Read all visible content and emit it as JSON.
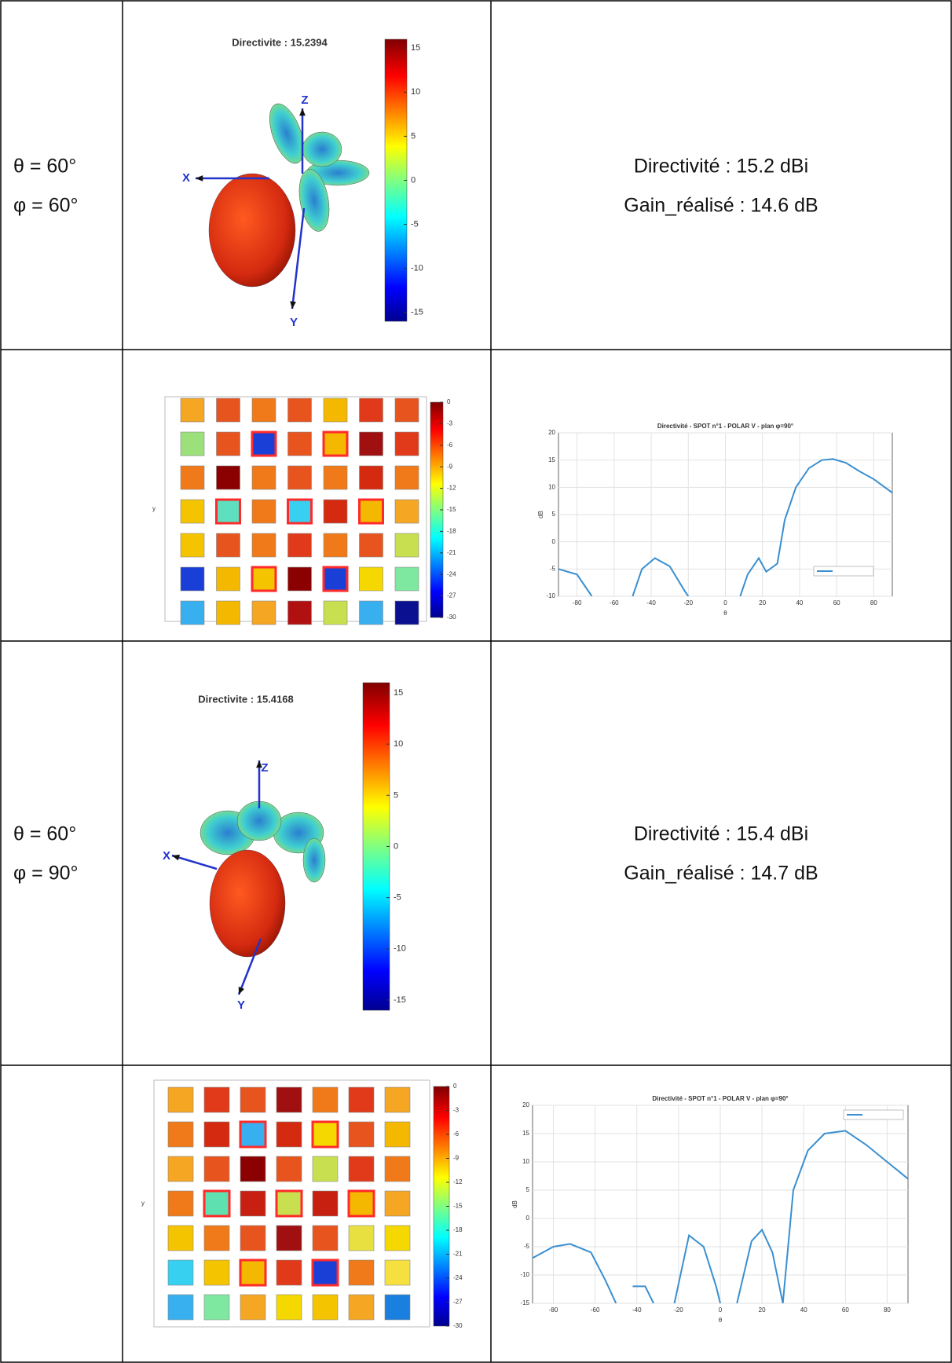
{
  "table": {
    "rows": [
      {
        "angles": [
          "θ = 60°",
          "φ = 60°"
        ],
        "results": [
          "Directivité : 15.2 dBi",
          "Gain_réalisé : 14.6 dB"
        ],
        "pattern": {
          "title": "Directivite : 15.2394",
          "axes": {
            "x": "X",
            "y": "Y",
            "z": "Z"
          },
          "colorbar": {
            "lim": [
              -16,
              16
            ],
            "ticks": [
              15,
              10,
              5,
              0,
              -5,
              -10,
              -15
            ]
          }
        }
      },
      {
        "array_map": {
          "ylabel": "y",
          "colorbar": {
            "lim": [
              -30,
              0
            ],
            "ticks": [
              0,
              -3,
              -6,
              -9,
              -12,
              -15,
              -18,
              -21,
              -24,
              -27,
              -30
            ]
          },
          "cells": [
            [
              "#f5a623",
              "#e8541e",
              "#f07a1a",
              "#e8541e",
              "#f5b800",
              "#e03a1a",
              "#e8541e"
            ],
            [
              "#9be07a",
              "#e8541e",
              "#1a3fd6",
              "#e8541e",
              "#f5b800",
              "#a01010",
              "#e03a1a"
            ],
            [
              "#f07a1a",
              "#8b0000",
              "#f07a1a",
              "#e8541e",
              "#f07a1a",
              "#d42a10",
              "#f07a1a"
            ],
            [
              "#f5c400",
              "#5ee0c0",
              "#f07a1a",
              "#38d0f0",
              "#d42a10",
              "#f5b800",
              "#f5a623"
            ],
            [
              "#f5c400",
              "#e8541e",
              "#f07a1a",
              "#e03a1a",
              "#f07a1a",
              "#e8541e",
              "#c8e050"
            ],
            [
              "#1a3fd6",
              "#f5b800",
              "#f5c400",
              "#8b0000",
              "#1a3fd6",
              "#f5d800",
              "#7ee8a0"
            ],
            [
              "#38b0f0",
              "#f5b800",
              "#f5a623",
              "#b01010",
              "#c8e050",
              "#38b0f0",
              "#0a1090"
            ]
          ],
          "outlined": [
            [
              false,
              false,
              false,
              false,
              false,
              false,
              false
            ],
            [
              false,
              false,
              true,
              false,
              true,
              false,
              false
            ],
            [
              false,
              false,
              false,
              false,
              false,
              false,
              false
            ],
            [
              false,
              true,
              false,
              true,
              false,
              true,
              false
            ],
            [
              false,
              false,
              false,
              false,
              false,
              false,
              false
            ],
            [
              false,
              false,
              true,
              false,
              true,
              false,
              false
            ],
            [
              false,
              false,
              false,
              false,
              false,
              false,
              false
            ]
          ]
        },
        "cut": {
          "type": "line",
          "title": "Directivité - SPOT n°1 - POLAR V - plan φ=90°",
          "xlabel": "θ",
          "ylabel": "dB",
          "grid": true,
          "xlim": [
            -90,
            90
          ],
          "ylim": [
            -10,
            20
          ],
          "xticks": [
            -80,
            -60,
            -40,
            -20,
            0,
            20,
            40,
            60,
            80
          ],
          "yticks": [
            -10,
            -5,
            0,
            5,
            10,
            15,
            20
          ],
          "x": [
            -90,
            -80,
            -72,
            -60,
            -50,
            -45,
            -38,
            -30,
            -22,
            -20,
            0,
            8,
            12,
            18,
            22,
            28,
            32,
            38,
            45,
            52,
            58,
            65,
            72,
            80,
            90
          ],
          "series": [
            {
              "color": "#3a8fd0",
              "values": [
                -5,
                -6,
                -10,
                null,
                -10,
                -5,
                -3,
                -4.5,
                -9,
                -10,
                null,
                -10,
                -6,
                -3,
                -5.5,
                -4,
                4,
                10,
                13.5,
                15,
                15.2,
                14.5,
                13,
                11.5,
                9
              ]
            }
          ]
        }
      },
      {
        "angles": [
          "θ = 60°",
          "φ = 90°"
        ],
        "results": [
          "Directivité : 15.4 dBi",
          "Gain_réalisé : 14.7 dB"
        ],
        "pattern": {
          "title": "Directivite : 15.4168",
          "axes": {
            "x": "X",
            "y": "Y",
            "z": "Z"
          },
          "colorbar": {
            "lim": [
              -16,
              16
            ],
            "ticks": [
              15,
              10,
              5,
              0,
              -5,
              -10,
              -15
            ]
          }
        }
      },
      {
        "array_map": {
          "ylabel": "y",
          "colorbar": {
            "lim": [
              -30,
              0
            ],
            "ticks": [
              0,
              -3,
              -6,
              -9,
              -12,
              -15,
              -18,
              -21,
              -24,
              -27,
              -30
            ]
          },
          "cells": [
            [
              "#f5a623",
              "#e03a1a",
              "#e8541e",
              "#a01010",
              "#f07a1a",
              "#e03a1a",
              "#f5a623"
            ],
            [
              "#f07a1a",
              "#d42a10",
              "#38b0f0",
              "#d42a10",
              "#f5d800",
              "#e8541e",
              "#f5b800"
            ],
            [
              "#f5a623",
              "#e8541e",
              "#8b0000",
              "#e8541e",
              "#c8e050",
              "#e03a1a",
              "#f07a1a"
            ],
            [
              "#f07a1a",
              "#5ee0b0",
              "#c82010",
              "#c8e050",
              "#c82010",
              "#f5b800",
              "#f5a623"
            ],
            [
              "#f5c400",
              "#f07a1a",
              "#e8541e",
              "#a01010",
              "#e8541e",
              "#e8e040",
              "#f5d800"
            ],
            [
              "#38d0f0",
              "#f5c400",
              "#f5b800",
              "#e03a1a",
              "#1a3fd6",
              "#f07a1a",
              "#f5e040"
            ],
            [
              "#38b0f0",
              "#7ee8a0",
              "#f5a623",
              "#f5d800",
              "#f5c400",
              "#f5a623",
              "#1a80e0"
            ]
          ],
          "outlined": [
            [
              false,
              false,
              false,
              false,
              false,
              false,
              false
            ],
            [
              false,
              false,
              true,
              false,
              true,
              false,
              false
            ],
            [
              false,
              false,
              false,
              false,
              false,
              false,
              false
            ],
            [
              false,
              true,
              false,
              true,
              false,
              true,
              false
            ],
            [
              false,
              false,
              false,
              false,
              false,
              false,
              false
            ],
            [
              false,
              false,
              true,
              false,
              true,
              false,
              false
            ],
            [
              false,
              false,
              false,
              false,
              false,
              false,
              false
            ]
          ]
        },
        "cut": {
          "type": "line",
          "title": "Directivité - SPOT n°1 - POLAR V - plan φ=90°",
          "xlabel": "θ",
          "ylabel": "dB",
          "grid": true,
          "xlim": [
            -90,
            90
          ],
          "ylim": [
            -15,
            20
          ],
          "xticks": [
            -80,
            -60,
            -40,
            -20,
            0,
            20,
            40,
            60,
            80
          ],
          "yticks": [
            -15,
            -10,
            -5,
            0,
            5,
            10,
            15,
            20
          ],
          "x": [
            -90,
            -80,
            -72,
            -62,
            -55,
            -50,
            -46,
            -42,
            -36,
            -32,
            -27,
            -22,
            -15,
            -8,
            -2,
            0,
            4,
            8,
            15,
            20,
            25,
            30,
            35,
            42,
            50,
            60,
            70,
            80,
            90
          ],
          "series": [
            {
              "color": "#3a8fd0",
              "values": [
                -7,
                -5,
                -4.5,
                -6,
                -11,
                -15,
                null,
                -12,
                -12,
                -15,
                null,
                -15,
                -3,
                -5,
                -12,
                -15,
                null,
                -15,
                -4,
                -2,
                -6,
                -15,
                5,
                12,
                15,
                15.5,
                13,
                10,
                7
              ]
            }
          ]
        }
      }
    ]
  }
}
